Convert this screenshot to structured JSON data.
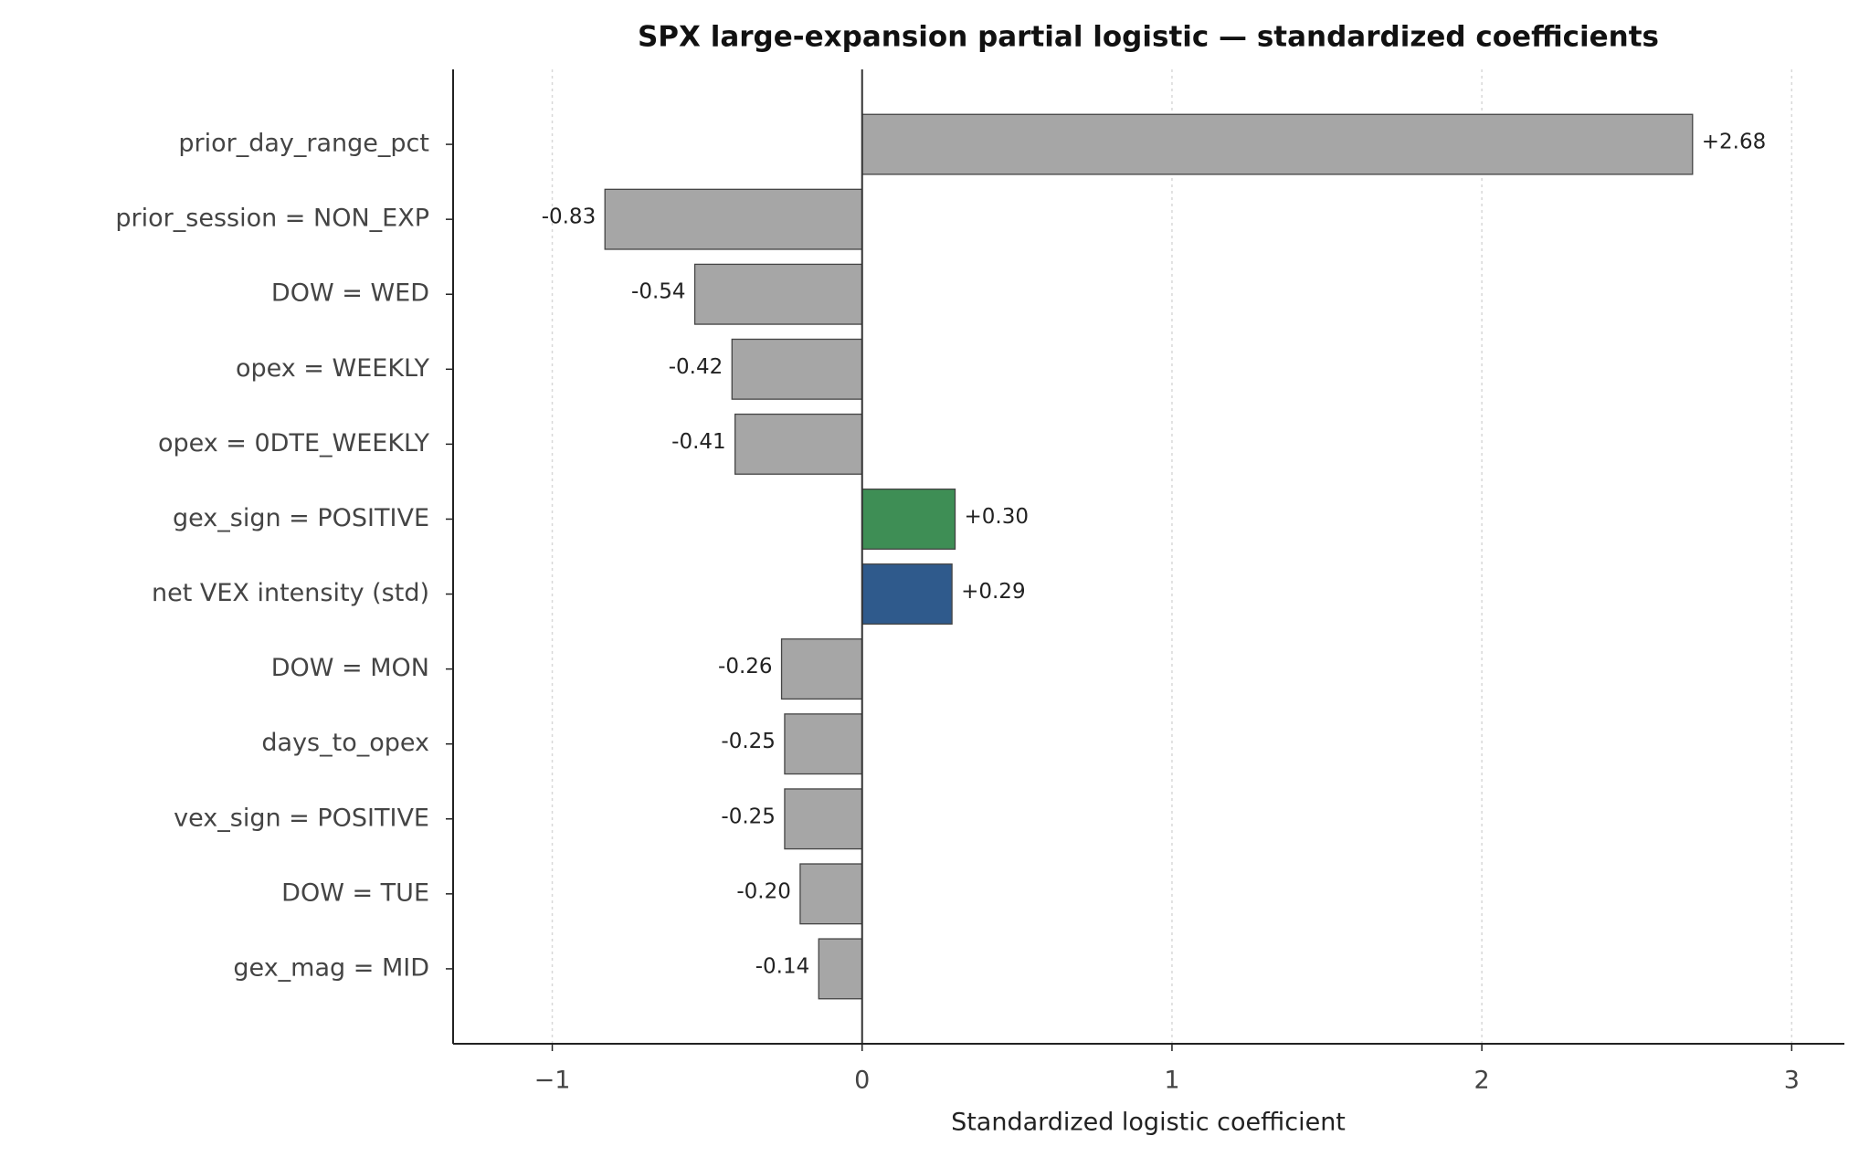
{
  "chart_data": {
    "type": "barh",
    "title": "SPX large-expansion partial logistic — standardized coefficients",
    "x_label": "Standardized logistic coefficient",
    "categories": [
      "prior_day_range_pct",
      "prior_session = NON_EXP",
      "DOW = WED",
      "opex = WEEKLY",
      "opex = 0DTE_WEEKLY",
      "gex_sign = POSITIVE",
      "net VEX intensity (std)",
      "DOW = MON",
      "days_to_opex",
      "vex_sign = POSITIVE",
      "DOW = TUE",
      "gex_mag = MID"
    ],
    "values": [
      2.68,
      -0.83,
      -0.54,
      -0.42,
      -0.41,
      0.3,
      0.29,
      -0.26,
      -0.25,
      -0.25,
      -0.2,
      -0.14
    ],
    "value_labels": [
      "+2.68",
      "-0.83",
      "-0.54",
      "-0.42",
      "-0.41",
      "+0.30",
      "+0.29",
      "-0.26",
      "-0.25",
      "-0.25",
      "-0.20",
      "-0.14"
    ],
    "colors": [
      "#a6a6a6",
      "#a6a6a6",
      "#a6a6a6",
      "#a6a6a6",
      "#a6a6a6",
      "#3e8e55",
      "#2f5a8c",
      "#a6a6a6",
      "#a6a6a6",
      "#a6a6a6",
      "#a6a6a6",
      "#a6a6a6"
    ],
    "xlim": [
      -1.32,
      3.17
    ],
    "xticks": [
      {
        "value": -1,
        "label": "−1"
      },
      0,
      1,
      2,
      3
    ],
    "grid": true
  }
}
